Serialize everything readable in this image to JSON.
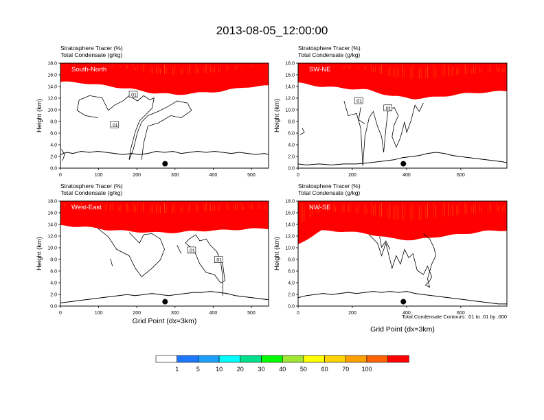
{
  "title": "2013-08-05_12:00:00",
  "footnote": "Total Condensate Contours: .01 to .01 by .000",
  "colorbar": {
    "labels": [
      "1",
      "5",
      "10",
      "20",
      "30",
      "40",
      "50",
      "60",
      "70",
      "100"
    ],
    "colors": [
      "#ffffff",
      "#1e78ff",
      "#1ea0ff",
      "#00ffff",
      "#00e08c",
      "#00ff00",
      "#a0e632",
      "#ffff00",
      "#ffd200",
      "#ffa000",
      "#ff6400",
      "#ff0000"
    ]
  },
  "chart_data": [
    {
      "type": "heatmap",
      "panel_label": "South-North",
      "title_line1": "Stratosphere Tracer   (%)",
      "title_line2": "Total Condensate   (g/kg)",
      "xlabel": "",
      "ylabel": "Height (km)",
      "xlim": [
        0,
        545
      ],
      "ylim": [
        0,
        18
      ],
      "xticks": [
        "0",
        "100",
        "200",
        "300",
        "400",
        "500"
      ],
      "yticks": [
        "0.0",
        "2.0",
        "4.0",
        "6.0",
        "8.0",
        "10.0",
        "12.0",
        "14.0",
        "16.0",
        "18.0"
      ],
      "tracer_base_km": [
        14.8,
        14.6,
        14.1,
        13.6,
        12.9,
        12.6,
        12.9,
        13.2,
        13.9,
        14.1
      ],
      "contour_labels": [
        ".01",
        ".01"
      ],
      "marker_x": 274
    },
    {
      "type": "heatmap",
      "panel_label": "SW-NE",
      "title_line1": "Stratosphere Tracer   (%)",
      "title_line2": "Total Condensate   (g/kg)",
      "xlabel": "",
      "ylabel": "Height (km)",
      "xlim": [
        0,
        770
      ],
      "ylim": [
        0,
        18
      ],
      "xticks": [
        "0",
        "200",
        "400",
        "600"
      ],
      "yticks": [
        "0.0",
        "2.0",
        "4.0",
        "6.0",
        "8.0",
        "10.0",
        "12.0",
        "14.0",
        "16.0",
        "18.0"
      ],
      "tracer_base_km": [
        14.6,
        14.0,
        13.7,
        13.4,
        12.4,
        11.9,
        12.2,
        12.7,
        13.0,
        13.2
      ],
      "contour_labels": [
        ".01",
        ".01"
      ],
      "marker_x": 388
    },
    {
      "type": "heatmap",
      "panel_label": "West-East",
      "title_line1": "Stratosphere Tracer   (%)",
      "title_line2": "Total Condensate   (g/kg)",
      "xlabel": "Grid Point (dx=3km)",
      "ylabel": "Height (km)",
      "xlim": [
        0,
        545
      ],
      "ylim": [
        0,
        18
      ],
      "xticks": [
        "0",
        "100",
        "200",
        "300",
        "400",
        "500"
      ],
      "yticks": [
        "0.0",
        "2.0",
        "4.0",
        "6.0",
        "8.0",
        "10.0",
        "12.0",
        "14.0",
        "16.0",
        "18.0"
      ],
      "tracer_base_km": [
        13.8,
        13.6,
        13.1,
        12.8,
        12.6,
        12.6,
        12.9,
        13.0,
        13.2,
        13.3
      ],
      "contour_labels": [
        ".01",
        ".01"
      ],
      "marker_x": 274
    },
    {
      "type": "heatmap",
      "panel_label": "NW-SE",
      "title_line1": "Stratosphere Tracer   (%)",
      "title_line2": "Total Condensate   (g/kg)",
      "xlabel": "Grid Point (dx=3km)",
      "ylabel": "Height (km)",
      "xlim": [
        0,
        770
      ],
      "ylim": [
        0,
        18
      ],
      "xticks": [
        "0",
        "200",
        "400",
        "600"
      ],
      "yticks": [
        "0.0",
        "2.0",
        "4.0",
        "6.0",
        "8.0",
        "10.0",
        "12.0",
        "14.0",
        "16.0",
        "18.0"
      ],
      "tracer_base_km": [
        10.6,
        12.9,
        12.8,
        12.4,
        11.6,
        11.3,
        11.9,
        12.3,
        12.8,
        13.0
      ],
      "contour_labels": [],
      "marker_x": 388
    }
  ]
}
